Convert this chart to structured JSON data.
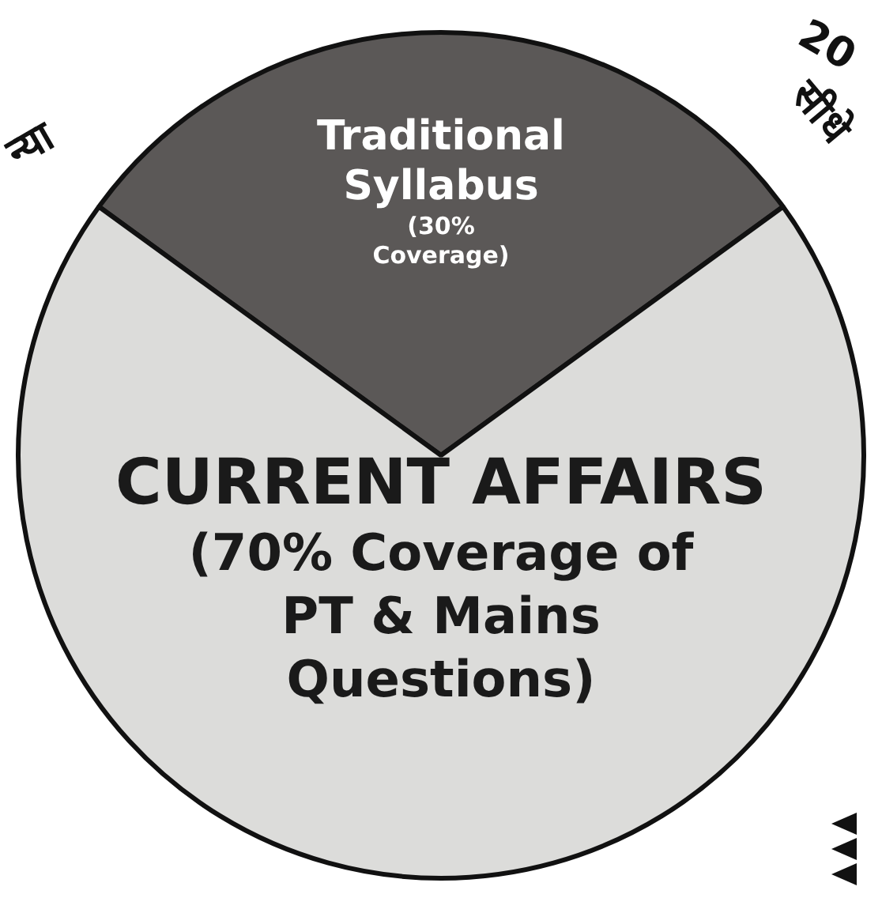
{
  "chart_data": {
    "type": "pie",
    "categories": [
      "Traditional Syllabus",
      "CURRENT AFFAIRS"
    ],
    "values": [
      30,
      70
    ],
    "colors": [
      "#5b5857",
      "#dcdcda"
    ],
    "value_labels": [
      "(30% Coverage)",
      "(70% Coverage of PT & Mains Questions)"
    ],
    "annotations": [
      "न्या",
      "20",
      "सीधे"
    ],
    "legend": false
  }
}
